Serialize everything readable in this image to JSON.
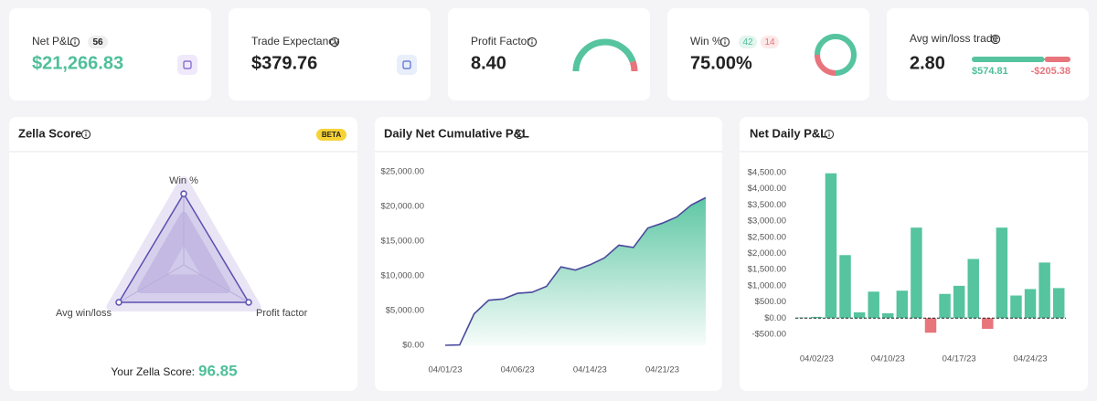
{
  "net_pnl": {
    "label": "Net P&L",
    "count": 56,
    "value": "$21,266.83"
  },
  "trade_expectancy": {
    "label": "Trade Expectancy",
    "value": "$379.76"
  },
  "profit_factor": {
    "label": "Profit Factor",
    "value": {
      "value": 8.4,
      "label": "8.40"
    },
    "color": "#55c49f",
    "loss_color": "#e8747c"
  },
  "win_rate": {
    "label": "Win %",
    "wins": 42,
    "losses": 14,
    "value": "75.00%",
    "color": "#55c49f",
    "loss_color": "#e8747c"
  },
  "avg_win_loss": {
    "label": "Avg win/loss trade",
    "value": "2.80",
    "avg_win": {
      "value": 574.81,
      "label": "$574.81"
    },
    "avg_loss": {
      "value": -205.38,
      "label": "-$205.38"
    },
    "color": "#55c49f",
    "loss_color": "#e8747c"
  },
  "zella": {
    "title": "Zella Score",
    "badge": "BETA",
    "score_label": "Your Zella Score:",
    "score": "96.85"
  },
  "chart_data": [
    {
      "type": "radar",
      "categories": [
        "Win %",
        "Profit factor",
        "Avg win/loss"
      ],
      "values": [
        95,
        100,
        100
      ],
      "ylim": [
        0,
        100
      ],
      "color": "#5b4fb0"
    },
    {
      "type": "area",
      "title": "Daily Net Cumulative P&L",
      "categories": [
        "04/01/23",
        null,
        null,
        null,
        null,
        "04/06/23",
        null,
        null,
        null,
        null,
        "04/14/23",
        null,
        null,
        null,
        null,
        "04/21/23",
        null,
        null,
        null
      ],
      "values": [
        0,
        60,
        4540,
        6490,
        6670,
        7490,
        7640,
        8490,
        11290,
        10840,
        11590,
        12590,
        14420,
        14090,
        16890,
        17590,
        18490,
        20210,
        21266.83
      ],
      "ylim": [
        0,
        25000
      ],
      "yticks": [
        {
          "value": 0,
          "label": "$0.00"
        },
        {
          "value": 5000,
          "label": "$5,000.00"
        },
        {
          "value": 10000,
          "label": "$10,000.00"
        },
        {
          "value": 15000,
          "label": "$15,000.00"
        },
        {
          "value": 20000,
          "label": "$20,000.00"
        },
        {
          "value": 25000,
          "label": "$25,000.00"
        }
      ],
      "color": "#55c49f",
      "line_color": "#4b4a9c"
    },
    {
      "type": "bar",
      "title": "Net Daily P&L",
      "categories": [
        null,
        "04/02/23",
        null,
        null,
        null,
        null,
        "04/10/23",
        null,
        null,
        null,
        null,
        "04/17/23",
        null,
        null,
        null,
        null,
        "04/24/23",
        null,
        null
      ],
      "values": [
        20,
        40,
        4480,
        1950,
        180,
        820,
        150,
        850,
        2800,
        -450,
        750,
        1000,
        1830,
        -330,
        2800,
        700,
        900,
        1720,
        930
      ],
      "ylim": [
        -500,
        4500
      ],
      "yticks": [
        {
          "value": -500,
          "label": "-$500.00"
        },
        {
          "value": 0,
          "label": "$0.00"
        },
        {
          "value": 500,
          "label": "$500.00"
        },
        {
          "value": 1000,
          "label": "$1,000.00"
        },
        {
          "value": 1500,
          "label": "$1,500.00"
        },
        {
          "value": 2000,
          "label": "$2,000.00"
        },
        {
          "value": 2500,
          "label": "$2,500.00"
        },
        {
          "value": 3000,
          "label": "$3,000.00"
        },
        {
          "value": 3500,
          "label": "$3,500.00"
        },
        {
          "value": 4000,
          "label": "$4,000.00"
        },
        {
          "value": 4500,
          "label": "$4,500.00"
        }
      ],
      "color": "#55c49f",
      "negative_color": "#e8747c"
    }
  ]
}
